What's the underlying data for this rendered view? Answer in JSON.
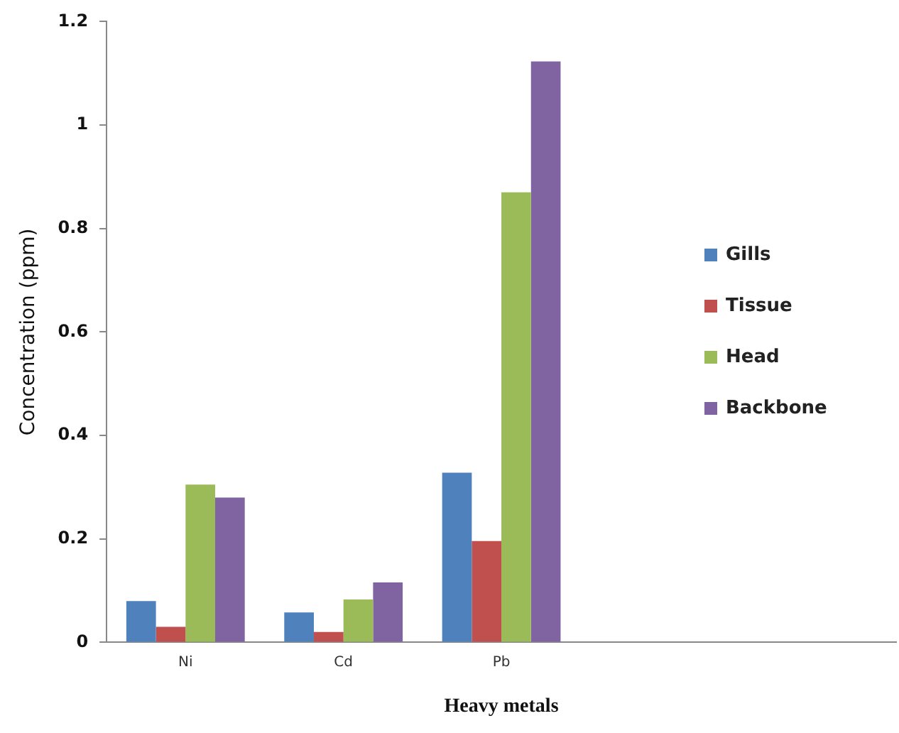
{
  "chart_data": {
    "type": "bar",
    "xlabel": "Heavy metals",
    "ylabel": "Concentration (ppm)",
    "categories": [
      "Ni",
      "Cd",
      "Pb",
      null,
      null
    ],
    "series": [
      {
        "name": "Gills",
        "color": "#4f81bd",
        "values": [
          0.08,
          0.058,
          0.328,
          null,
          null
        ]
      },
      {
        "name": "Tissue",
        "color": "#c0504d",
        "values": [
          0.03,
          0.02,
          0.196,
          null,
          null
        ]
      },
      {
        "name": "Head",
        "color": "#9bbb59",
        "values": [
          0.305,
          0.083,
          0.87,
          null,
          null
        ]
      },
      {
        "name": "Backbone",
        "color": "#8064a2",
        "values": [
          0.28,
          0.116,
          1.123,
          null,
          null
        ]
      }
    ],
    "ylim": [
      0,
      1.2
    ],
    "yticks": [
      0,
      0.2,
      0.4,
      0.6,
      0.8,
      1,
      1.2
    ],
    "grid": false,
    "legend": "right"
  }
}
